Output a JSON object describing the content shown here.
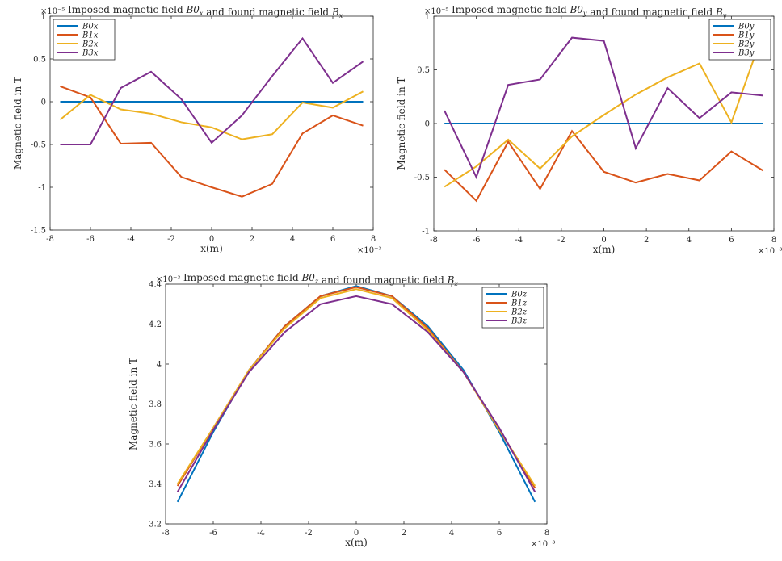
{
  "chart_data": [
    {
      "id": "bx",
      "type": "line",
      "title": "Imposed magnetic field B0x and found magnetic field Bx",
      "xlabel": "x(m)",
      "ylabel": "Magnetic field in T",
      "x_exponent": "×10⁻³",
      "y_exponent": "×10⁻⁵",
      "xlim": [
        -8,
        8
      ],
      "ylim": [
        -1.5,
        1
      ],
      "xticks": [
        -8,
        -6,
        -4,
        -2,
        0,
        2,
        4,
        6,
        8
      ],
      "yticks": [
        -1.5,
        -1,
        -0.5,
        0,
        0.5,
        1
      ],
      "ytick_labels": [
        "-1.5",
        "-1",
        "-0.5",
        "0",
        "0.5",
        "1"
      ],
      "grid": false,
      "legend_position": "top-left",
      "x": [
        -7.5,
        -6,
        -4.5,
        -3,
        -1.5,
        0,
        1.5,
        3,
        4.5,
        6,
        7.5
      ],
      "series": [
        {
          "name": "B0x",
          "color": "#0072BD",
          "values": [
            0,
            0,
            0,
            0,
            0,
            0,
            0,
            0,
            0,
            0,
            0
          ]
        },
        {
          "name": "B1x",
          "color": "#D95319",
          "values": [
            0.18,
            0.05,
            -0.49,
            -0.48,
            -0.88,
            -1.0,
            -1.11,
            -0.96,
            -0.37,
            -0.16,
            -0.28
          ]
        },
        {
          "name": "B2x",
          "color": "#EDB120",
          "values": [
            -0.21,
            0.08,
            -0.09,
            -0.14,
            -0.24,
            -0.3,
            -0.44,
            -0.38,
            -0.01,
            -0.07,
            0.12
          ]
        },
        {
          "name": "B3x",
          "color": "#7E2F8E",
          "values": [
            -0.5,
            -0.5,
            0.16,
            0.35,
            0.03,
            -0.48,
            -0.16,
            0.3,
            0.74,
            0.22,
            0.47
          ]
        }
      ]
    },
    {
      "id": "by",
      "type": "line",
      "title": "Imposed magnetic field B0y and found magnetic field By",
      "xlabel": "x(m)",
      "ylabel": "Magnetic field in T",
      "x_exponent": "×10⁻³",
      "y_exponent": "×10⁻⁵",
      "xlim": [
        -8,
        8
      ],
      "ylim": [
        -1,
        1
      ],
      "xticks": [
        -8,
        -6,
        -4,
        -2,
        0,
        2,
        4,
        6,
        8
      ],
      "yticks": [
        -1,
        -0.5,
        0,
        0.5,
        1
      ],
      "ytick_labels": [
        "-1",
        "-0.5",
        "0",
        "0.5",
        "1"
      ],
      "grid": false,
      "legend_position": "top-right",
      "x": [
        -7.5,
        -6,
        -4.5,
        -3,
        -1.5,
        0,
        1.5,
        3,
        4.5,
        6,
        7.5
      ],
      "series": [
        {
          "name": "B0y",
          "color": "#0072BD",
          "values": [
            0,
            0,
            0,
            0,
            0,
            0,
            0,
            0,
            0,
            0,
            0
          ]
        },
        {
          "name": "B1y",
          "color": "#D95319",
          "values": [
            -0.43,
            -0.72,
            -0.17,
            -0.61,
            -0.07,
            -0.45,
            -0.55,
            -0.47,
            -0.53,
            -0.26,
            -0.44
          ]
        },
        {
          "name": "B2y",
          "color": "#EDB120",
          "values": [
            -0.59,
            -0.4,
            -0.15,
            -0.42,
            -0.12,
            0.08,
            0.27,
            0.43,
            0.56,
            0.01,
            0.85
          ]
        },
        {
          "name": "B3y",
          "color": "#7E2F8E",
          "values": [
            0.12,
            -0.5,
            0.36,
            0.41,
            0.8,
            0.77,
            -0.23,
            0.33,
            0.05,
            0.29,
            0.26
          ]
        }
      ]
    },
    {
      "id": "bz",
      "type": "line",
      "title": "Imposed magnetic field B0z and found magnetic field Bz",
      "xlabel": "x(m)",
      "ylabel": "Magnetic field in T",
      "x_exponent": "×10⁻³",
      "y_exponent": "×10⁻³",
      "xlim": [
        -8,
        8
      ],
      "ylim": [
        3.2,
        4.4
      ],
      "xticks": [
        -8,
        -6,
        -4,
        -2,
        0,
        2,
        4,
        6,
        8
      ],
      "yticks": [
        3.2,
        3.4,
        3.6,
        3.8,
        4.0,
        4.2,
        4.4
      ],
      "ytick_labels": [
        "3.2",
        "3.4",
        "3.6",
        "3.8",
        "4",
        "4.2",
        "4.4"
      ],
      "grid": false,
      "legend_position": "top-right",
      "x": [
        -7.5,
        -6,
        -4.5,
        -3,
        -1.5,
        0,
        1.5,
        3,
        4.5,
        6,
        7.5
      ],
      "series": [
        {
          "name": "B0z",
          "color": "#0072BD",
          "values": [
            3.31,
            3.66,
            3.97,
            4.19,
            4.34,
            4.39,
            4.34,
            4.19,
            3.97,
            3.66,
            3.31
          ]
        },
        {
          "name": "B1z",
          "color": "#D95319",
          "values": [
            3.39,
            3.68,
            3.97,
            4.19,
            4.34,
            4.385,
            4.34,
            4.18,
            3.96,
            3.67,
            3.38
          ]
        },
        {
          "name": "B2z",
          "color": "#EDB120",
          "values": [
            3.4,
            3.68,
            3.97,
            4.18,
            4.33,
            4.375,
            4.33,
            4.17,
            3.96,
            3.67,
            3.39
          ]
        },
        {
          "name": "B3z",
          "color": "#7E2F8E",
          "values": [
            3.36,
            3.67,
            3.96,
            4.16,
            4.3,
            4.34,
            4.3,
            4.16,
            3.96,
            3.68,
            3.36
          ]
        }
      ]
    }
  ]
}
